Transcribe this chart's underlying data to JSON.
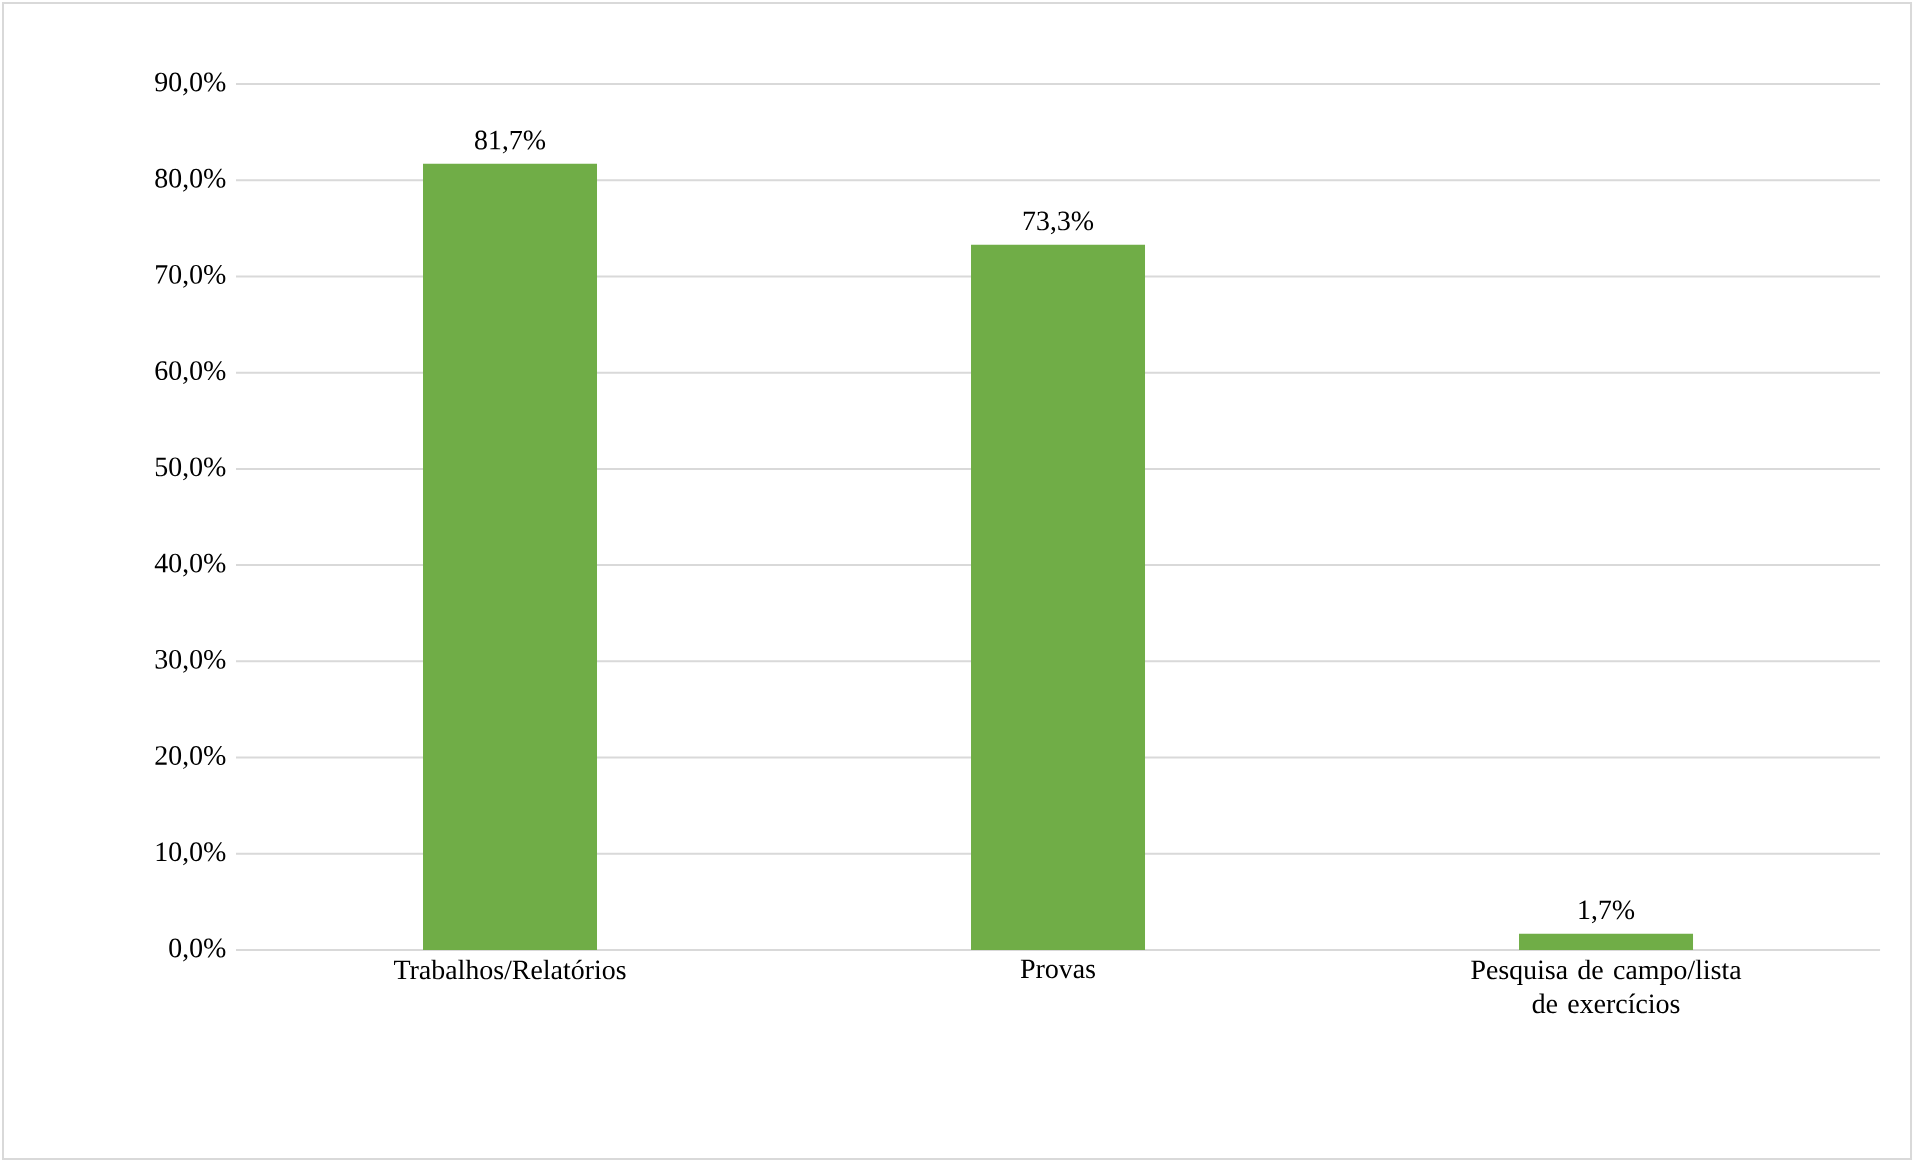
{
  "chart_data": {
    "type": "bar",
    "categories": [
      "Trabalhos/Relatórios",
      "Provas",
      "Pesquisa de campo/lista de exercícios"
    ],
    "values": [
      81.7,
      73.3,
      1.7
    ],
    "value_labels": [
      "81,7%",
      "73,3%",
      "1,7%"
    ],
    "color": "#70ad47",
    "ylim": [
      0,
      90
    ],
    "yticks": [
      {
        "value": 0,
        "label": "0,0%"
      },
      {
        "value": 10,
        "label": "10,0%"
      },
      {
        "value": 20,
        "label": "20,0%"
      },
      {
        "value": 30,
        "label": "30,0%"
      },
      {
        "value": 40,
        "label": "40,0%"
      },
      {
        "value": 50,
        "label": "50,0%"
      },
      {
        "value": 60,
        "label": "60,0%"
      },
      {
        "value": 70,
        "label": "70,0%"
      },
      {
        "value": 80,
        "label": "80,0%"
      },
      {
        "value": 90,
        "label": "90,0%"
      }
    ],
    "grid": "y"
  }
}
